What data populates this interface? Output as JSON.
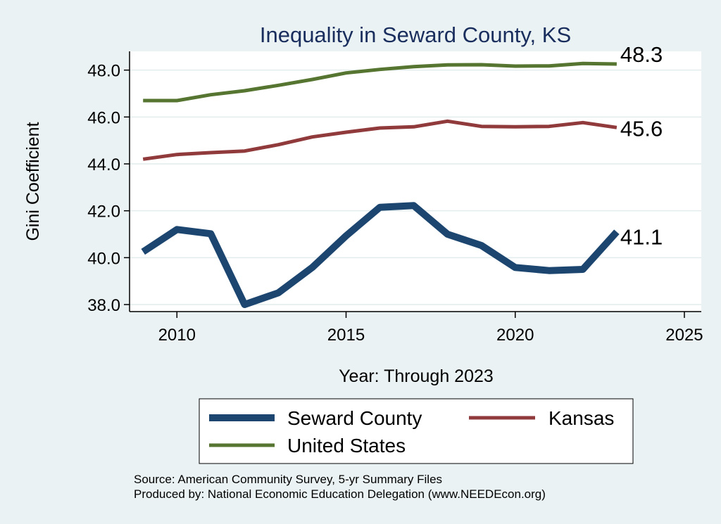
{
  "chart_data": {
    "type": "line",
    "title": "Inequality in Seward County, KS",
    "xlabel": "Year: Through 2023",
    "ylabel": "Gini Coefficient",
    "xlim": [
      2008.6,
      2025.5
    ],
    "ylim": [
      37.7,
      48.8
    ],
    "x_ticks": [
      2010,
      2015,
      2020,
      2025
    ],
    "y_ticks": [
      38.0,
      40.0,
      42.0,
      44.0,
      46.0,
      48.0
    ],
    "y_tick_labels": [
      "38.0",
      "40.0",
      "42.0",
      "44.0",
      "46.0",
      "48.0"
    ],
    "grid": true,
    "legend_position": "bottom",
    "x": [
      2009,
      2010,
      2011,
      2012,
      2013,
      2014,
      2015,
      2016,
      2017,
      2018,
      2019,
      2020,
      2021,
      2022,
      2023
    ],
    "series": [
      {
        "name": "Seward County",
        "color": "#1c4670",
        "end_label": "41.1",
        "values": [
          40.25,
          41.2,
          41.02,
          38.0,
          38.5,
          39.58,
          40.93,
          42.15,
          42.22,
          41.0,
          40.52,
          39.58,
          39.45,
          39.5,
          41.1
        ]
      },
      {
        "name": "Kansas",
        "color": "#903a3c",
        "end_label": "45.6",
        "values": [
          44.2,
          44.4,
          44.48,
          44.55,
          44.82,
          45.15,
          45.35,
          45.53,
          45.58,
          45.82,
          45.6,
          45.58,
          45.6,
          45.76,
          45.55
        ]
      },
      {
        "name": "United States",
        "color": "#557530",
        "end_label": "48.3",
        "values": [
          46.7,
          46.7,
          46.95,
          47.12,
          47.35,
          47.6,
          47.88,
          48.03,
          48.15,
          48.22,
          48.23,
          48.17,
          48.18,
          48.28,
          48.26
        ]
      }
    ],
    "notes": [
      "Source: American Community Survey, 5-yr Summary Files",
      "Produced by: National Economic Education Delegation (www.NEEDEcon.org)"
    ]
  }
}
